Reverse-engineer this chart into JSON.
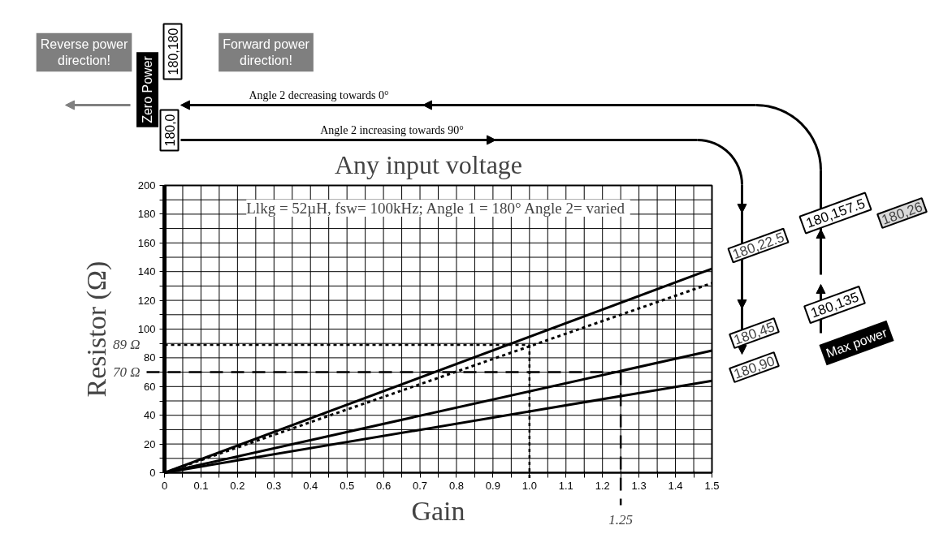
{
  "chart_data": {
    "type": "line",
    "title": "Any input voltage",
    "subtitle": "Llkg = 52µH, fsw= 100kHz; Angle 1 = 180°  Angle 2= varied",
    "xlabel": "Gain",
    "ylabel": "Resistor (Ω)",
    "x": [
      0,
      1.5
    ],
    "series": [
      {
        "name": "180,22.5",
        "color": "#000000",
        "values": [
          0,
          142
        ],
        "line_style": "solid"
      },
      {
        "name": "180,26",
        "color": "#000000",
        "values": [
          0,
          132
        ],
        "line_style": "dotted"
      },
      {
        "name": "180,45",
        "color": "#000000",
        "values": [
          0,
          85
        ],
        "line_style": "solid"
      },
      {
        "name": "180,90",
        "color": "#000000",
        "values": [
          0,
          64
        ],
        "line_style": "solid"
      }
    ],
    "xlim": [
      0,
      1.5
    ],
    "ylim": [
      0,
      200
    ],
    "xticks": [
      0,
      {
        "value": 0.05,
        "label": null
      },
      0.1,
      {
        "value": 0.15,
        "label": null
      },
      0.2,
      {
        "value": 0.25,
        "label": null
      },
      0.3,
      {
        "value": 0.35,
        "label": null
      },
      0.4,
      {
        "value": 0.45,
        "label": null
      },
      0.5,
      {
        "value": 0.55,
        "label": null
      },
      0.6,
      {
        "value": 0.65,
        "label": null
      },
      0.7,
      {
        "value": 0.75,
        "label": null
      },
      0.8,
      {
        "value": 0.85,
        "label": null
      },
      0.9,
      {
        "value": 0.95,
        "label": null
      },
      {
        "value": 1.0,
        "label": "1.0"
      },
      {
        "value": 1.05,
        "label": null
      },
      1.1,
      {
        "value": 1.15,
        "label": null
      },
      1.2,
      {
        "value": 1.25,
        "label": null
      },
      1.3,
      {
        "value": 1.35,
        "label": null
      },
      1.4,
      {
        "value": 1.45,
        "label": null
      },
      1.5
    ],
    "yticks": [
      0,
      {
        "value": 10,
        "label": null
      },
      20,
      {
        "value": 30,
        "label": null
      },
      40,
      {
        "value": 50,
        "label": null
      },
      60,
      {
        "value": 70,
        "label": null
      },
      80,
      {
        "value": 90,
        "label": null
      },
      100,
      {
        "value": 110,
        "label": null
      },
      120,
      {
        "value": 130,
        "label": null
      },
      140,
      {
        "value": 150,
        "label": null
      },
      160,
      {
        "value": 170,
        "label": null
      },
      180,
      {
        "value": 190,
        "label": null
      },
      200
    ],
    "grid": true,
    "marker": "none",
    "legend": "right",
    "ref_lines": [
      {
        "axis": "y",
        "value": 89,
        "label": "89 Ω",
        "line_style": "dotted",
        "color": "#000000"
      },
      {
        "axis": "y",
        "value": 70,
        "label": "70 Ω",
        "line_style": "dashed",
        "color": "#000000"
      },
      {
        "axis": "x",
        "value": 1.0,
        "label": null,
        "line_style": "dotted",
        "color": "#000000"
      },
      {
        "axis": "x",
        "value": 1.25,
        "label": "1.25",
        "line_style": "dashed",
        "color": "#000000"
      }
    ],
    "annotations": [
      "Reverse power direction!",
      "Forward power direction!",
      "Zero Power",
      "180,180",
      "180,0",
      "Angle 2 decreasing towards 0°",
      "Angle 2 increasing towards 90°",
      "180,157.5",
      "180,135",
      "Max power"
    ]
  }
}
